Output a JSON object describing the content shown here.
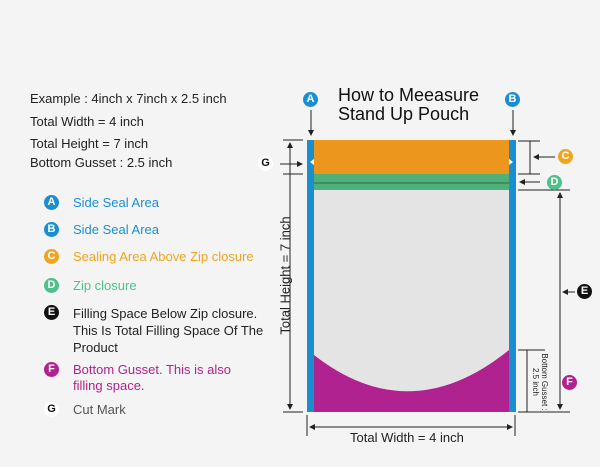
{
  "example": {
    "line1": "Example : 4inch x 7inch x 2.5 inch",
    "line2": "Total Width = 4 inch",
    "line3": "Total Height = 7 inch",
    "line4": "Bottom Gusset : 2.5 inch"
  },
  "title": {
    "line1": "How to Meeasure",
    "line2": "Stand Up Pouch"
  },
  "legend": [
    {
      "letter": "A",
      "color": "#1a8fd0",
      "text": "Side Seal Area"
    },
    {
      "letter": "B",
      "color": "#1a8fd0",
      "text": "Side Seal Area"
    },
    {
      "letter": "C",
      "color": "#f0a51e",
      "text": "Sealing Area Above Zip closure"
    },
    {
      "letter": "D",
      "color": "#4fbf8c",
      "text": "Zip closure"
    },
    {
      "letter": "E",
      "color": "#111111",
      "text": "Filling Space Below Zip closure. This Is Total Filling Space Of The Product"
    },
    {
      "letter": "F",
      "color": "#b0228f",
      "text": "Bottom Gusset. This is also filling space."
    },
    {
      "letter": "G",
      "color": "#ffffff",
      "text": "Cut Mark"
    }
  ],
  "diagram": {
    "total_height_label": "Total Height = 7 inch",
    "total_width_label": "Total Width = 4 inch",
    "gusset_label_1": "Bottom Gusset :",
    "gusset_label_2": "2.5 inch"
  }
}
